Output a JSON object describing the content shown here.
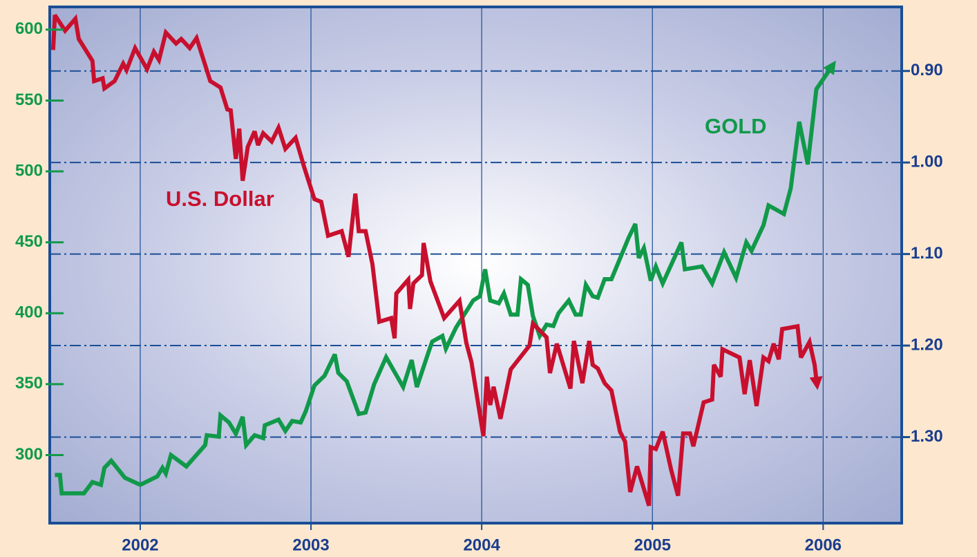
{
  "chart_data": {
    "type": "line",
    "xlim": [
      2001.47,
      2006.46
    ],
    "xticks": [
      2002,
      2003,
      2004,
      2005,
      2006
    ],
    "ylim": [
      252,
      616
    ],
    "yticks": [
      300,
      350,
      400,
      450,
      500,
      550,
      600
    ],
    "y2lim": [
      0.83,
      1.394
    ],
    "y2_inverted": true,
    "y2ticks": [
      {
        "value": 0.9,
        "label": "0.90"
      },
      {
        "value": 1.0,
        "label": "1.00"
      },
      {
        "value": 1.1,
        "label": "1.10"
      },
      {
        "value": 1.2,
        "label": "1.20"
      },
      {
        "value": 1.3,
        "label": "1.30"
      }
    ],
    "grid": true,
    "series": [
      {
        "name": "GOLD",
        "color": "#11994a",
        "axis": "y",
        "x": [
          2001.5,
          2001.53,
          2001.54,
          2001.67,
          2001.72,
          2001.77,
          2001.79,
          2001.83,
          2001.91,
          2002.0,
          2002.1,
          2002.13,
          2002.15,
          2002.18,
          2002.27,
          2002.38,
          2002.39,
          2002.46,
          2002.47,
          2002.52,
          2002.56,
          2002.6,
          2002.62,
          2002.67,
          2002.72,
          2002.73,
          2002.81,
          2002.85,
          2002.89,
          2002.94,
          2002.97,
          2003.02,
          2003.08,
          2003.14,
          2003.16,
          2003.21,
          2003.28,
          2003.32,
          2003.37,
          2003.44,
          2003.54,
          2003.59,
          2003.62,
          2003.69,
          2003.71,
          2003.77,
          2003.79,
          2003.85,
          2003.95,
          2003.99,
          2004.02,
          2004.05,
          2004.1,
          2004.13,
          2004.17,
          2004.21,
          2004.23,
          2004.27,
          2004.3,
          2004.34,
          2004.38,
          2004.42,
          2004.45,
          2004.51,
          2004.55,
          2004.58,
          2004.61,
          2004.65,
          2004.68,
          2004.72,
          2004.76,
          2004.86,
          2004.9,
          2004.92,
          2004.95,
          2004.99,
          2005.02,
          2005.06,
          2005.17,
          2005.19,
          2005.29,
          2005.35,
          2005.42,
          2005.49,
          2005.55,
          2005.58,
          2005.65,
          2005.68,
          2005.77,
          2005.81,
          2005.86,
          2005.91,
          2005.96,
          2006.04
        ],
        "values": [
          286,
          286,
          273,
          273,
          281,
          279,
          291,
          296,
          284,
          279,
          285,
          291,
          287,
          300,
          292,
          307,
          314,
          313,
          328,
          323,
          315,
          327,
          307,
          314,
          312,
          321,
          325,
          317,
          324,
          323,
          331,
          349,
          356,
          371,
          358,
          352,
          329,
          330,
          350,
          369,
          348,
          367,
          348,
          373,
          380,
          384,
          375,
          390,
          409,
          412,
          431,
          409,
          407,
          414,
          399,
          399,
          424,
          420,
          398,
          384,
          392,
          391,
          400,
          409,
          399,
          399,
          420,
          412,
          411,
          424,
          424,
          453,
          463,
          439,
          446,
          423,
          433,
          421,
          450,
          431,
          433,
          421,
          443,
          425,
          450,
          444,
          462,
          476,
          470,
          488,
          535,
          505,
          558,
          572
        ]
      },
      {
        "name": "U.S. Dollar",
        "color": "#c8102e",
        "axis": "y2",
        "x": [
          2001.49,
          2001.5,
          2001.56,
          2001.62,
          2001.64,
          2001.72,
          2001.73,
          2001.78,
          2001.79,
          2001.85,
          2001.9,
          2001.92,
          2001.97,
          2002.04,
          2002.08,
          2002.11,
          2002.15,
          2002.21,
          2002.24,
          2002.29,
          2002.33,
          2002.41,
          2002.47,
          2002.51,
          2002.53,
          2002.56,
          2002.58,
          2002.6,
          2002.63,
          2002.67,
          2002.69,
          2002.72,
          2002.77,
          2002.81,
          2002.85,
          2002.91,
          2002.96,
          2003.02,
          2003.06,
          2003.1,
          2003.18,
          2003.22,
          2003.26,
          2003.28,
          2003.32,
          2003.36,
          2003.4,
          2003.47,
          2003.49,
          2003.5,
          2003.57,
          2003.58,
          2003.6,
          2003.65,
          2003.66,
          2003.7,
          2003.78,
          2003.87,
          2003.91,
          2003.94,
          2004.01,
          2004.03,
          2004.05,
          2004.07,
          2004.11,
          2004.17,
          2004.28,
          2004.3,
          2004.38,
          2004.4,
          2004.44,
          2004.52,
          2004.54,
          2004.59,
          2004.63,
          2004.65,
          2004.68,
          2004.72,
          2004.76,
          2004.81,
          2004.84,
          2004.87,
          2004.91,
          2004.98,
          2004.99,
          2005.02,
          2005.06,
          2005.11,
          2005.15,
          2005.18,
          2005.22,
          2005.24,
          2005.3,
          2005.35,
          2005.36,
          2005.4,
          2005.41,
          2005.51,
          2005.54,
          2005.57,
          2005.61,
          2005.65,
          2005.68,
          2005.71,
          2005.74,
          2005.76,
          2005.85,
          2005.87,
          2005.92,
          2005.95,
          2005.96
        ],
        "values": [
          0.877,
          0.839,
          0.856,
          0.843,
          0.865,
          0.889,
          0.911,
          0.908,
          0.919,
          0.911,
          0.892,
          0.899,
          0.875,
          0.898,
          0.879,
          0.888,
          0.858,
          0.87,
          0.865,
          0.875,
          0.864,
          0.911,
          0.918,
          0.942,
          0.943,
          0.996,
          0.963,
          1.02,
          0.983,
          0.966,
          0.981,
          0.968,
          0.977,
          0.962,
          0.985,
          0.973,
          1.005,
          1.04,
          1.043,
          1.08,
          1.075,
          1.103,
          1.034,
          1.075,
          1.075,
          1.111,
          1.174,
          1.17,
          1.192,
          1.143,
          1.128,
          1.16,
          1.132,
          1.123,
          1.088,
          1.13,
          1.17,
          1.151,
          1.197,
          1.218,
          1.299,
          1.234,
          1.265,
          1.245,
          1.28,
          1.226,
          1.2,
          1.176,
          1.191,
          1.23,
          1.198,
          1.247,
          1.195,
          1.241,
          1.195,
          1.221,
          1.225,
          1.241,
          1.249,
          1.294,
          1.305,
          1.36,
          1.332,
          1.375,
          1.311,
          1.313,
          1.294,
          1.336,
          1.364,
          1.296,
          1.296,
          1.31,
          1.262,
          1.259,
          1.221,
          1.234,
          1.204,
          1.213,
          1.253,
          1.216,
          1.266,
          1.213,
          1.217,
          1.198,
          1.215,
          1.182,
          1.179,
          1.213,
          1.196,
          1.221,
          1.237
        ]
      }
    ]
  }
}
